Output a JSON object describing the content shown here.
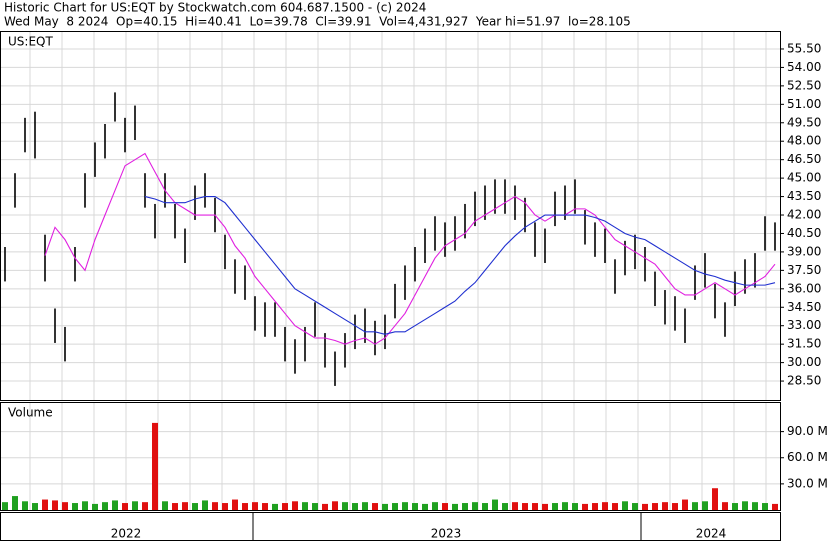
{
  "header": {
    "line1": "Historic Chart for US:EQT by Stockwatch.com 604.687.1500 - (c) 2024",
    "line2": "Wed May  8 2024  Op=40.15  Hi=40.41  Lo=39.78  Cl=39.91  Vol=4,431,927  Year hi=51.97  lo=28.105"
  },
  "chart_data": [
    {
      "type": "ohlc",
      "title": "US:EQT",
      "x_labels": [
        "2022",
        "2023",
        "2024"
      ],
      "ylim": [
        26.96,
        56.88
      ],
      "yticks": [
        {
          "value": 28.5,
          "label": "28.50"
        },
        {
          "value": 30,
          "label": "30.00"
        },
        {
          "value": 31.5,
          "label": "31.50"
        },
        {
          "value": 33,
          "label": "33.00"
        },
        {
          "value": 34.5,
          "label": "34.50"
        },
        {
          "value": 36,
          "label": "36.00"
        },
        {
          "value": 37.5,
          "label": "37.50"
        },
        {
          "value": 39,
          "label": "39.00"
        },
        {
          "value": 40.5,
          "label": "40.50"
        },
        {
          "value": 42,
          "label": "42.00"
        },
        {
          "value": 43.5,
          "label": "43.50"
        },
        {
          "value": 45,
          "label": "45.00"
        },
        {
          "value": 46.5,
          "label": "46.50"
        },
        {
          "value": 48,
          "label": "48.00"
        },
        {
          "value": 49.5,
          "label": "49.50"
        },
        {
          "value": 51,
          "label": "51.00"
        },
        {
          "value": 52.5,
          "label": "52.50"
        },
        {
          "value": 54,
          "label": "54.00"
        },
        {
          "value": 55.5,
          "label": "55.50"
        }
      ],
      "grid": true,
      "high": [
        39.4,
        45.4,
        49.9,
        50.4,
        40.4,
        34.4,
        32.9,
        39.4,
        45.4,
        47.9,
        49.4,
        51.97,
        49.9,
        50.9,
        45.4,
        42.9,
        45.4,
        42.9,
        40.9,
        44.4,
        45.4,
        43.4,
        40.4,
        38.4,
        37.9,
        35.4,
        34.9,
        34.9,
        32.9,
        31.9,
        32.9,
        34.9,
        32.4,
        30.9,
        32.4,
        33.9,
        34.4,
        33.4,
        33.9,
        36.4,
        37.9,
        39.4,
        40.9,
        41.9,
        41.4,
        41.9,
        42.9,
        43.9,
        44.4,
        44.9,
        44.9,
        44.4,
        43.4,
        41.4,
        40.9,
        43.9,
        44.4,
        44.9,
        42.4,
        41.4,
        40.9,
        38.4,
        39.9,
        40.4,
        39.4,
        37.4,
        35.9,
        35.4,
        34.4,
        37.9,
        38.9,
        36.4,
        34.9,
        37.4,
        38.4,
        38.9,
        41.9,
        41.4
      ],
      "low": [
        36.6,
        42.6,
        47.1,
        46.6,
        36.6,
        31.6,
        30.1,
        36.6,
        42.6,
        45.1,
        46.6,
        49.6,
        47.1,
        48.1,
        42.6,
        40.1,
        42.6,
        40.1,
        38.1,
        41.6,
        42.6,
        40.6,
        37.6,
        35.6,
        35.1,
        32.6,
        32.1,
        32.1,
        30.1,
        29.1,
        30.1,
        32.1,
        29.6,
        28.105,
        29.6,
        31.1,
        31.6,
        30.6,
        31.1,
        33.6,
        35.1,
        36.6,
        38.1,
        39.1,
        38.6,
        39.1,
        40.1,
        41.1,
        41.6,
        42.1,
        42.1,
        41.6,
        40.6,
        38.6,
        38.1,
        41.1,
        41.6,
        42.1,
        39.6,
        38.6,
        38.1,
        35.6,
        37.1,
        37.6,
        36.6,
        34.6,
        33.1,
        32.6,
        31.6,
        35.1,
        36.1,
        33.6,
        32.1,
        34.6,
        35.6,
        36.1,
        39.1,
        39.1
      ],
      "bar_color": "#000000",
      "series": [
        {
          "color": "#e020e0",
          "values": [
            null,
            null,
            null,
            null,
            38.7,
            41,
            40,
            38.5,
            37.5,
            40,
            42,
            44,
            46,
            46.5,
            47,
            45.5,
            44,
            43,
            42.5,
            42,
            42,
            42,
            41,
            39.5,
            38.5,
            37,
            36,
            35,
            34,
            33,
            32.5,
            32,
            32,
            31.8,
            31.5,
            31.8,
            32,
            31.5,
            32,
            33,
            34,
            35.5,
            37,
            38.5,
            39.5,
            40,
            40.5,
            41.5,
            42,
            42.5,
            43,
            43.5,
            43,
            42,
            41.5,
            42,
            42,
            42.5,
            42.5,
            42,
            41,
            40,
            39.5,
            39,
            38.5,
            38,
            37,
            36,
            35.5,
            35.5,
            36,
            36.5,
            36,
            35.5,
            36,
            36.5,
            37,
            38
          ]
        },
        {
          "color": "#2030d0",
          "values": [
            null,
            null,
            null,
            null,
            null,
            null,
            null,
            null,
            null,
            null,
            null,
            null,
            null,
            null,
            43.5,
            43.3,
            43,
            43,
            43,
            43.3,
            43.5,
            43.5,
            43,
            42,
            41,
            40,
            39,
            38,
            37,
            36,
            35.5,
            35,
            34.5,
            34,
            33.5,
            33,
            32.5,
            32.5,
            32.3,
            32.5,
            32.5,
            33,
            33.5,
            34,
            34.5,
            35,
            35.8,
            36.5,
            37.5,
            38.5,
            39.5,
            40.3,
            41,
            41.5,
            42,
            42,
            42,
            42,
            42,
            41.8,
            41.5,
            41,
            40.5,
            40.2,
            40,
            39.5,
            39,
            38.5,
            38,
            37.5,
            37.2,
            37,
            36.7,
            36.5,
            36.3,
            36.3,
            36.3,
            36.5
          ]
        }
      ]
    },
    {
      "type": "volume",
      "title": "Volume",
      "ylim": [
        0,
        124
      ],
      "yticks": [
        {
          "value": 30,
          "label": "30.0 M"
        },
        {
          "value": 60,
          "label": "60.0 M"
        },
        {
          "value": 90,
          "label": "90.0 M"
        }
      ],
      "up_color": "#20a020",
      "down_color": "#e01010",
      "values": [
        9,
        16,
        10,
        8,
        12,
        11,
        9,
        8,
        10,
        7,
        9,
        11,
        8,
        10,
        9,
        100,
        10,
        8,
        9,
        8,
        11,
        9,
        8,
        12,
        8,
        9,
        8,
        7,
        8,
        10,
        9,
        8,
        7,
        10,
        9,
        8,
        9,
        8,
        7,
        8,
        9,
        8,
        7,
        9,
        8,
        7,
        8,
        9,
        8,
        12,
        8,
        9,
        8,
        8,
        7,
        8,
        9,
        8,
        7,
        8,
        9,
        8,
        10,
        8,
        7,
        8,
        9,
        8,
        12,
        9,
        10,
        25,
        9,
        8,
        10,
        9,
        8,
        7
      ]
    }
  ]
}
